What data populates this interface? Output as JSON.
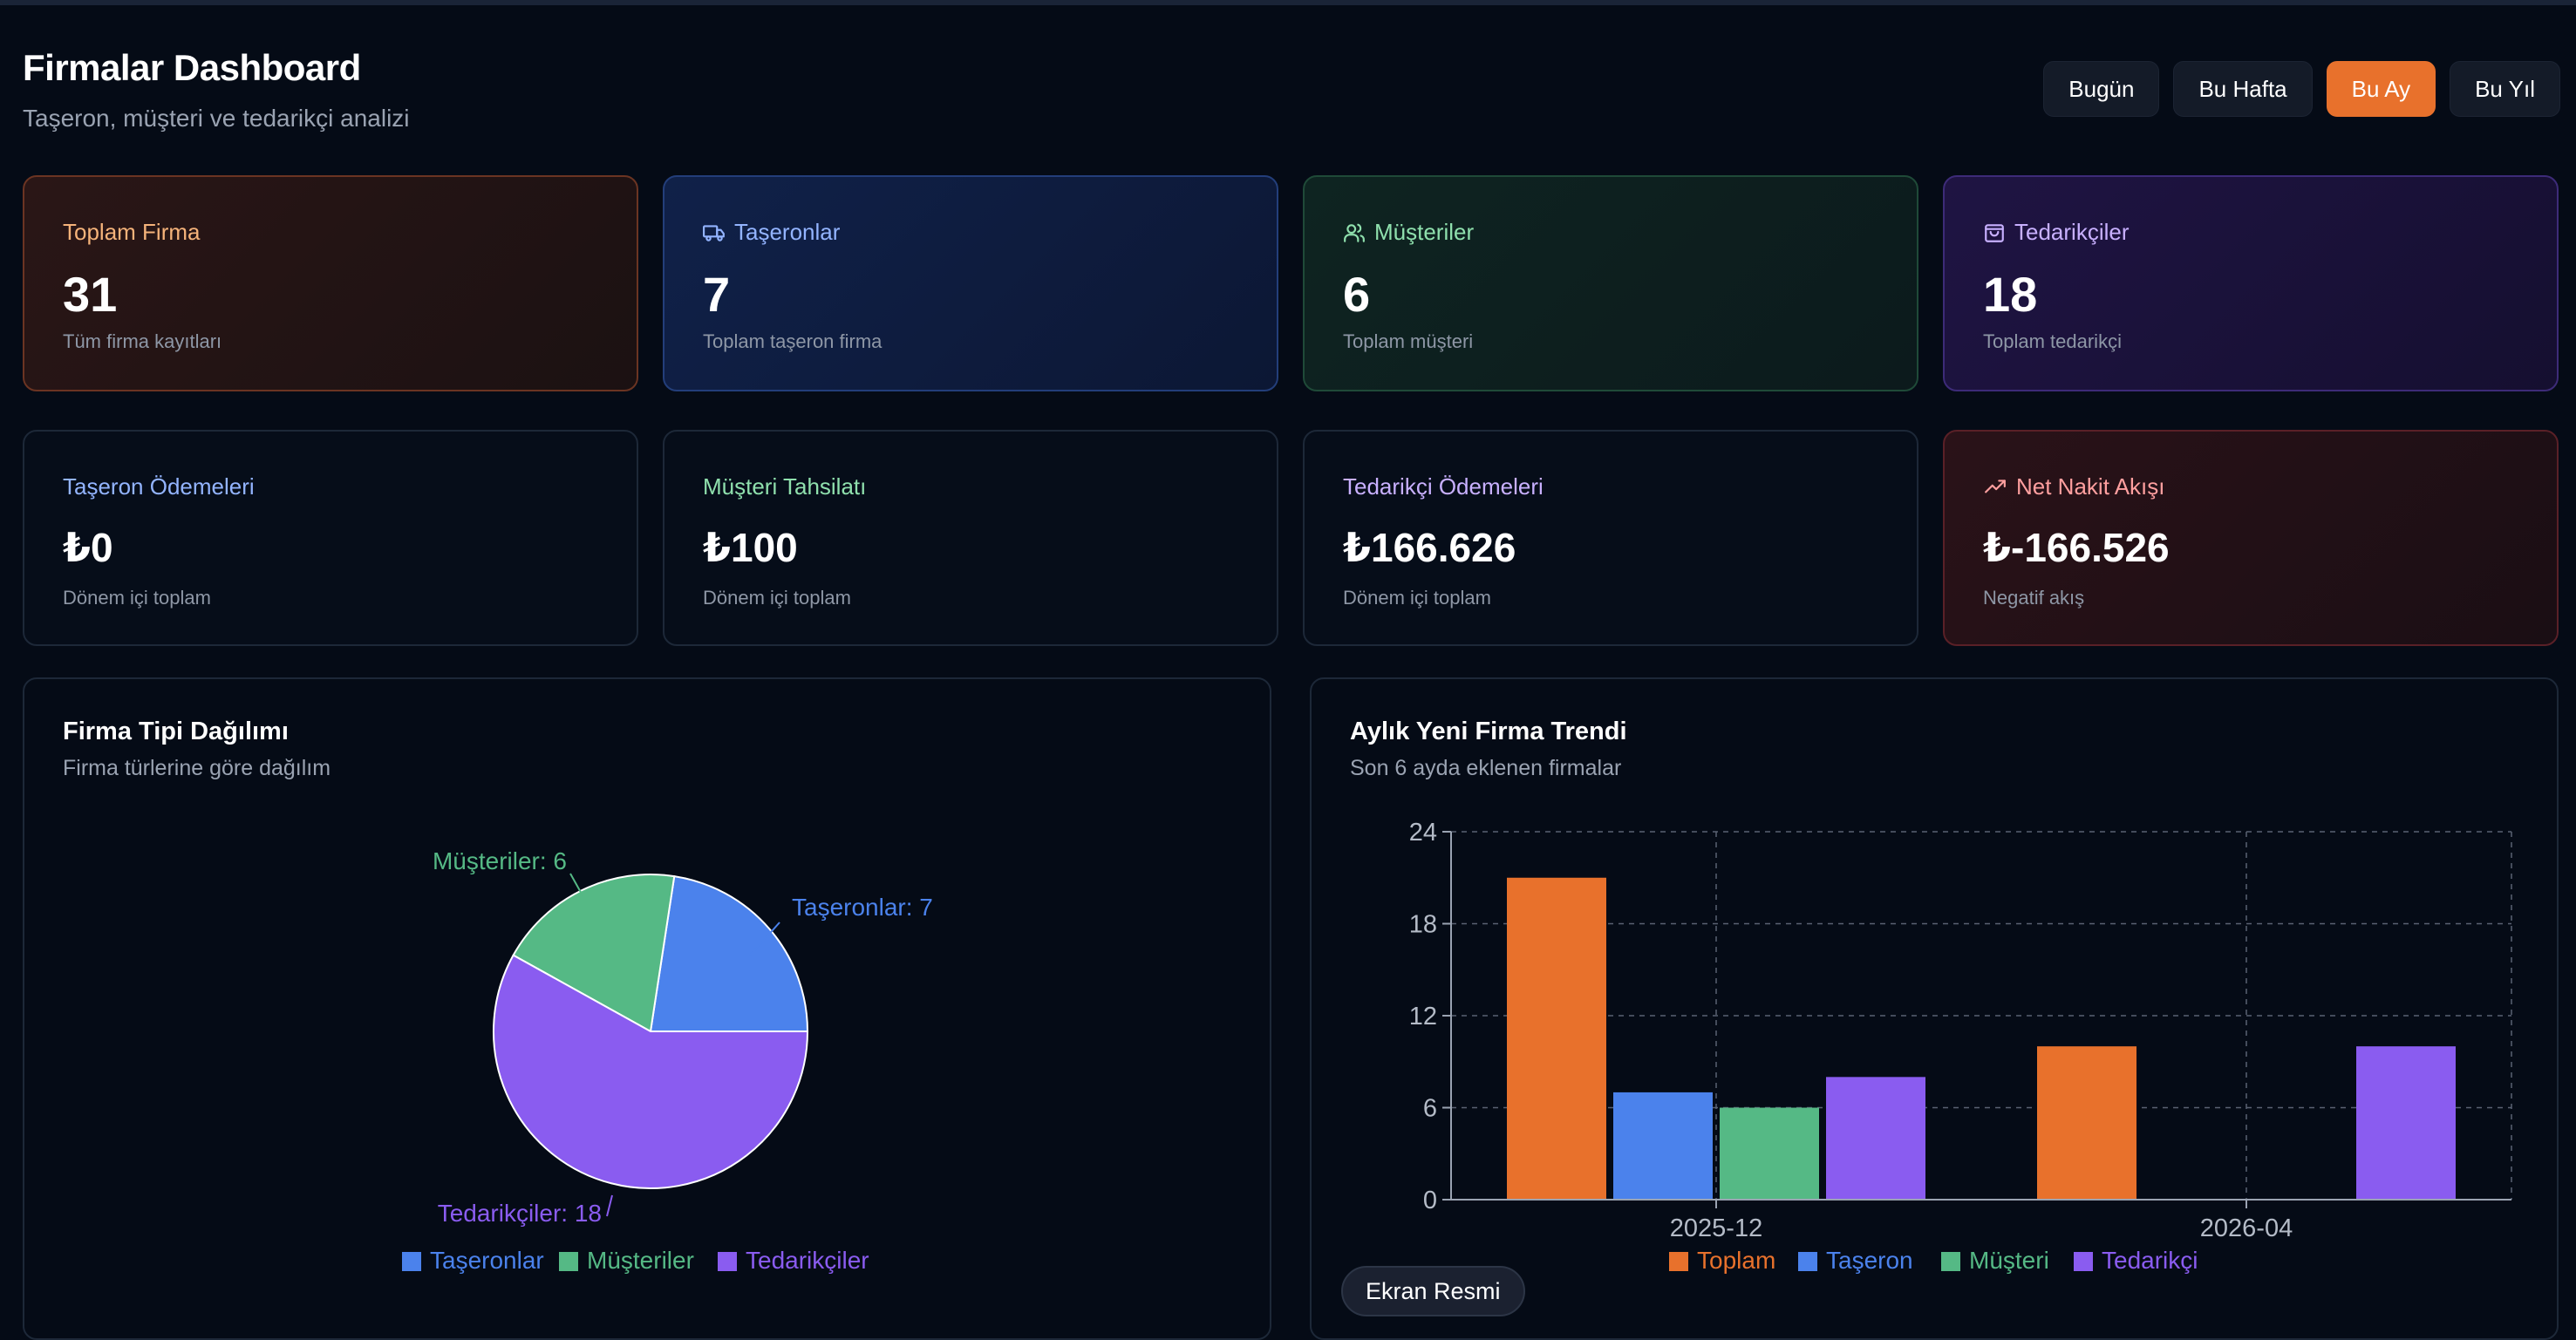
{
  "header": {
    "title": "Firmalar Dashboard",
    "subtitle": "Taşeron, müşteri ve tedarikçi analizi",
    "periods": [
      "Bugün",
      "Bu Hafta",
      "Bu Ay",
      "Bu Yıl"
    ],
    "active_period": "Bu Ay"
  },
  "stats": [
    {
      "label": "Toplam Firma",
      "value": "31",
      "sub": "Tüm firma kayıtları",
      "icon": "none"
    },
    {
      "label": "Taşeronlar",
      "value": "7",
      "sub": "Toplam taşeron firma",
      "icon": "truck-icon"
    },
    {
      "label": "Müşteriler",
      "value": "6",
      "sub": "Toplam müşteri",
      "icon": "users-icon"
    },
    {
      "label": "Tedarikçiler",
      "value": "18",
      "sub": "Toplam tedarikçi",
      "icon": "shopping-bag-icon"
    }
  ],
  "finance": [
    {
      "label": "Taşeron Ödemeleri",
      "value": "₺0",
      "sub": "Dönem içi toplam"
    },
    {
      "label": "Müşteri Tahsilatı",
      "value": "₺100",
      "sub": "Dönem içi toplam"
    },
    {
      "label": "Tedarikçi Ödemeleri",
      "value": "₺166.626",
      "sub": "Dönem içi toplam"
    },
    {
      "label": "Net Nakit Akışı",
      "value": "₺-166.526",
      "sub": "Negatif akış",
      "icon": "trending-up-icon"
    }
  ],
  "colors": {
    "orange": "#e8712c",
    "blue": "#4b82ec",
    "green": "#55b985",
    "purple": "#8a5cf0"
  },
  "pie_panel": {
    "title": "Firma Tipi Dağılımı",
    "subtitle": "Firma türlerine göre dağılım"
  },
  "bar_panel": {
    "title": "Aylık Yeni Firma Trendi",
    "subtitle": "Son 6 ayda eklenen firmalar"
  },
  "screenshot_button": "Ekran Resmi",
  "chart_data": [
    {
      "type": "pie",
      "title": "Firma Tipi Dağılımı",
      "slices": [
        {
          "name": "Taşeronlar",
          "value": 7,
          "label": "Taşeronlar: 7",
          "color": "#4b82ec"
        },
        {
          "name": "Müşteriler",
          "value": 6,
          "label": "Müşteriler: 6",
          "color": "#55b985"
        },
        {
          "name": "Tedarikçiler",
          "value": 18,
          "label": "Tedarikçiler: 18",
          "color": "#8a5cf0"
        }
      ],
      "legend": [
        "Taşeronlar",
        "Müşteriler",
        "Tedarikçiler"
      ],
      "legend_position": "bottom"
    },
    {
      "type": "bar",
      "title": "Aylık Yeni Firma Trendi",
      "categories": [
        "2025-12",
        "2026-04"
      ],
      "series": [
        {
          "name": "Toplam",
          "values": [
            21,
            10
          ],
          "color": "#e8712c"
        },
        {
          "name": "Taşeron",
          "values": [
            7,
            0
          ],
          "color": "#4b82ec"
        },
        {
          "name": "Müşteri",
          "values": [
            6,
            0
          ],
          "color": "#55b985"
        },
        {
          "name": "Tedarikçi",
          "values": [
            8,
            10
          ],
          "color": "#8a5cf0"
        }
      ],
      "yticks": [
        "0",
        "6",
        "12",
        "18",
        "24"
      ],
      "ylim": [
        0,
        24
      ],
      "grid": true,
      "legend_position": "bottom"
    }
  ]
}
